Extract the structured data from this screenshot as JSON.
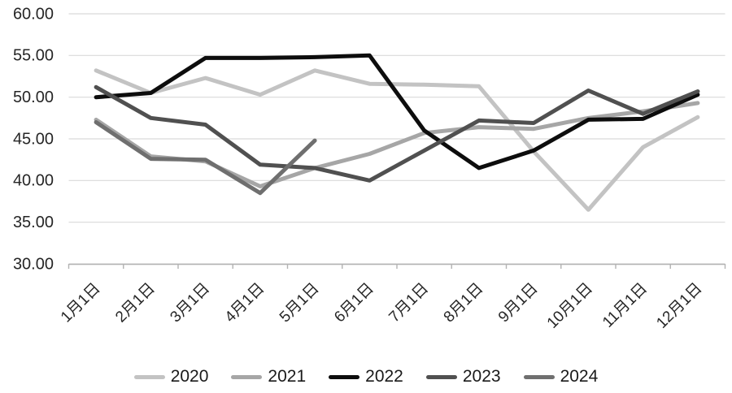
{
  "chart_data": {
    "type": "line",
    "title": "",
    "xlabel": "",
    "ylabel": "",
    "categories": [
      "1月1日",
      "2月1日",
      "3月1日",
      "4月1日",
      "5月1日",
      "6月1日",
      "7月1日",
      "8月1日",
      "9月1日",
      "10月1日",
      "11月1日",
      "12月1日"
    ],
    "y_tick_labels": [
      "60.00",
      "55.00",
      "50.00",
      "45.00",
      "40.00",
      "35.00",
      "30.00"
    ],
    "ylim": [
      30,
      60
    ],
    "y_step": 5,
    "grid": "horizontal",
    "legend_position": "bottom",
    "series": [
      {
        "name": "2020",
        "color": "#c3c3c3",
        "values": [
          53.2,
          50.5,
          52.3,
          50.3,
          53.2,
          51.6,
          51.5,
          51.3,
          43.5,
          36.5,
          44.0,
          47.6
        ]
      },
      {
        "name": "2021",
        "color": "#a6a6a6",
        "values": [
          47.3,
          42.9,
          42.3,
          39.3,
          41.5,
          43.2,
          45.7,
          46.4,
          46.2,
          47.5,
          48.3,
          49.3
        ]
      },
      {
        "name": "2022",
        "color": "#0d0d0d",
        "values": [
          50.0,
          50.5,
          54.7,
          54.7,
          54.8,
          55.0,
          46.0,
          41.5,
          43.6,
          47.3,
          47.4,
          50.3
        ]
      },
      {
        "name": "2023",
        "color": "#505050",
        "values": [
          51.2,
          47.5,
          46.7,
          41.9,
          41.5,
          40.0,
          43.6,
          47.2,
          46.9,
          50.8,
          48.0,
          50.7
        ]
      },
      {
        "name": "2024",
        "color": "#6f6f6f",
        "values": [
          47.0,
          42.6,
          42.5,
          38.5,
          44.8,
          null,
          null,
          null,
          null,
          null,
          null,
          null
        ]
      }
    ]
  }
}
